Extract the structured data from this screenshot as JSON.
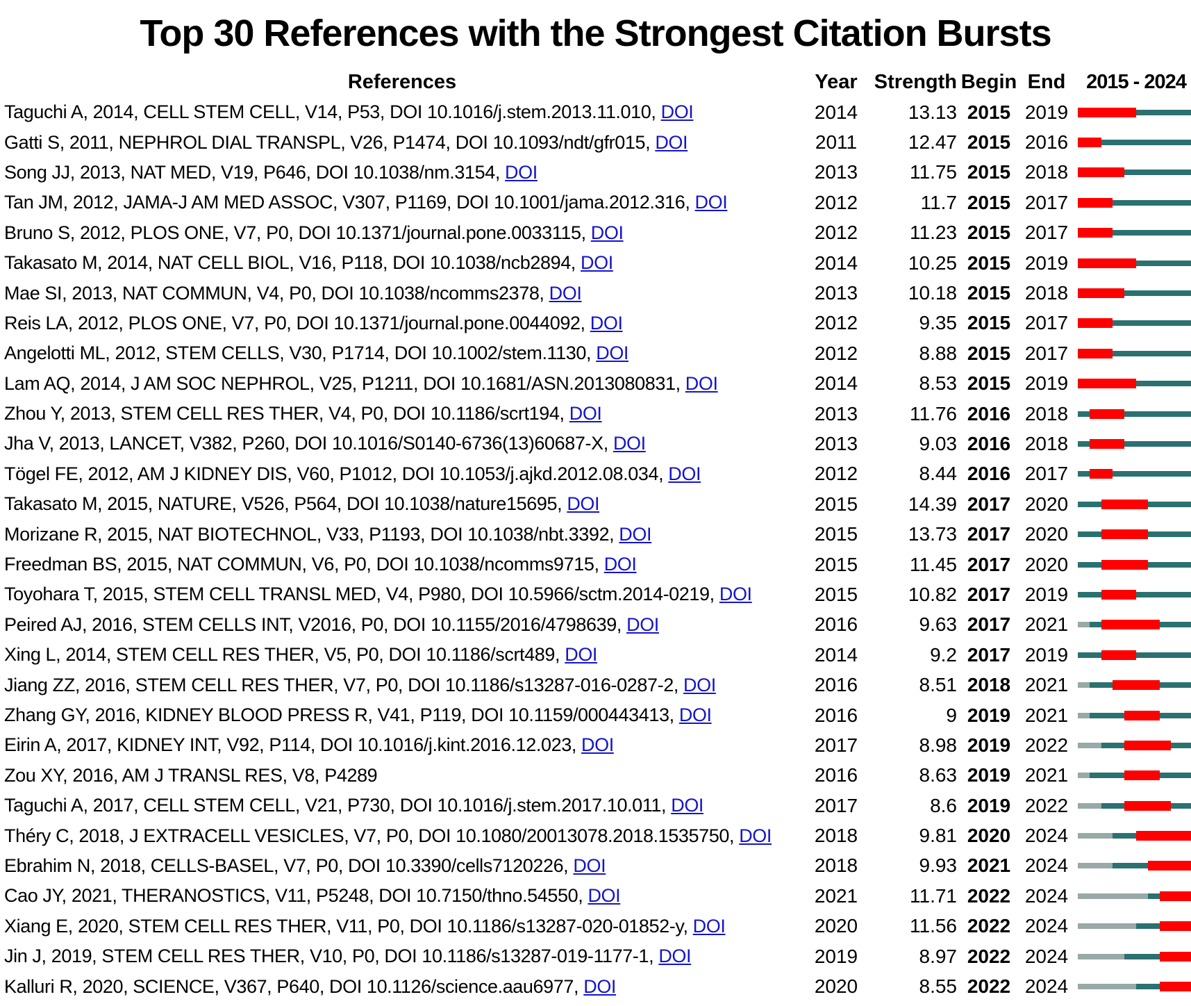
{
  "chart_data": {
    "type": "table",
    "title": "Top 30 References with the Strongest Citation Bursts",
    "headers": {
      "references": "References",
      "year": "Year",
      "strength": "Strength",
      "begin": "Begin",
      "end": "End",
      "range": "2015 - 2024"
    },
    "doi_label": "DOI",
    "timeline": {
      "start": 2015,
      "end": 2024
    },
    "colors": {
      "burst": "#fe0000",
      "active": "#2a7170",
      "pre": "#98a9a7",
      "link": "#1414cc"
    },
    "rows": [
      {
        "text": "Taguchi A, 2014, CELL STEM CELL, V14, P53, DOI 10.1016/j.stem.2013.11.010,",
        "doi": true,
        "year": 2014,
        "strength": "13.13",
        "begin": 2015,
        "end": 2019
      },
      {
        "text": "Gatti S, 2011, NEPHROL DIAL TRANSPL, V26, P1474, DOI 10.1093/ndt/gfr015,",
        "doi": true,
        "year": 2011,
        "strength": "12.47",
        "begin": 2015,
        "end": 2016
      },
      {
        "text": "Song JJ, 2013, NAT MED, V19, P646, DOI 10.1038/nm.3154,",
        "doi": true,
        "year": 2013,
        "strength": "11.75",
        "begin": 2015,
        "end": 2018
      },
      {
        "text": "Tan JM, 2012, JAMA-J AM MED ASSOC, V307, P1169, DOI 10.1001/jama.2012.316,",
        "doi": true,
        "year": 2012,
        "strength": "11.7",
        "begin": 2015,
        "end": 2017
      },
      {
        "text": "Bruno S, 2012, PLOS ONE, V7, P0, DOI 10.1371/journal.pone.0033115,",
        "doi": true,
        "year": 2012,
        "strength": "11.23",
        "begin": 2015,
        "end": 2017
      },
      {
        "text": "Takasato M, 2014, NAT CELL BIOL, V16, P118, DOI 10.1038/ncb2894,",
        "doi": true,
        "year": 2014,
        "strength": "10.25",
        "begin": 2015,
        "end": 2019
      },
      {
        "text": "Mae SI, 2013, NAT COMMUN, V4, P0, DOI 10.1038/ncomms2378,",
        "doi": true,
        "year": 2013,
        "strength": "10.18",
        "begin": 2015,
        "end": 2018
      },
      {
        "text": "Reis LA, 2012, PLOS ONE, V7, P0, DOI 10.1371/journal.pone.0044092,",
        "doi": true,
        "year": 2012,
        "strength": "9.35",
        "begin": 2015,
        "end": 2017
      },
      {
        "text": "Angelotti ML, 2012, STEM CELLS, V30, P1714, DOI 10.1002/stem.1130,",
        "doi": true,
        "year": 2012,
        "strength": "8.88",
        "begin": 2015,
        "end": 2017
      },
      {
        "text": "Lam AQ, 2014, J AM SOC NEPHROL, V25, P1211, DOI 10.1681/ASN.2013080831,",
        "doi": true,
        "year": 2014,
        "strength": "8.53",
        "begin": 2015,
        "end": 2019
      },
      {
        "text": "Zhou Y, 2013, STEM CELL RES THER, V4, P0, DOI 10.1186/scrt194,",
        "doi": true,
        "year": 2013,
        "strength": "11.76",
        "begin": 2016,
        "end": 2018
      },
      {
        "text": "Jha V, 2013, LANCET, V382, P260, DOI 10.1016/S0140-6736(13)60687-X,",
        "doi": true,
        "year": 2013,
        "strength": "9.03",
        "begin": 2016,
        "end": 2018
      },
      {
        "text": "Tögel FE, 2012, AM J KIDNEY DIS, V60, P1012, DOI 10.1053/j.ajkd.2012.08.034,",
        "doi": true,
        "year": 2012,
        "strength": "8.44",
        "begin": 2016,
        "end": 2017
      },
      {
        "text": "Takasato M, 2015, NATURE, V526, P564, DOI 10.1038/nature15695,",
        "doi": true,
        "year": 2015,
        "strength": "14.39",
        "begin": 2017,
        "end": 2020
      },
      {
        "text": "Morizane R, 2015, NAT BIOTECHNOL, V33, P1193, DOI 10.1038/nbt.3392,",
        "doi": true,
        "year": 2015,
        "strength": "13.73",
        "begin": 2017,
        "end": 2020
      },
      {
        "text": "Freedman BS, 2015, NAT COMMUN, V6, P0, DOI 10.1038/ncomms9715,",
        "doi": true,
        "year": 2015,
        "strength": "11.45",
        "begin": 2017,
        "end": 2020
      },
      {
        "text": "Toyohara T, 2015, STEM CELL TRANSL MED, V4, P980, DOI 10.5966/sctm.2014-0219,",
        "doi": true,
        "year": 2015,
        "strength": "10.82",
        "begin": 2017,
        "end": 2019
      },
      {
        "text": "Peired AJ, 2016, STEM CELLS INT, V2016, P0, DOI 10.1155/2016/4798639,",
        "doi": true,
        "year": 2016,
        "strength": "9.63",
        "begin": 2017,
        "end": 2021
      },
      {
        "text": "Xing L, 2014, STEM CELL RES THER, V5, P0, DOI 10.1186/scrt489,",
        "doi": true,
        "year": 2014,
        "strength": "9.2",
        "begin": 2017,
        "end": 2019
      },
      {
        "text": "Jiang ZZ, 2016, STEM CELL RES THER, V7, P0, DOI 10.1186/s13287-016-0287-2,",
        "doi": true,
        "year": 2016,
        "strength": "8.51",
        "begin": 2018,
        "end": 2021
      },
      {
        "text": "Zhang GY, 2016, KIDNEY BLOOD PRESS R, V41, P119, DOI 10.1159/000443413,",
        "doi": true,
        "year": 2016,
        "strength": "9",
        "begin": 2019,
        "end": 2021
      },
      {
        "text": "Eirin A, 2017, KIDNEY INT, V92, P114, DOI 10.1016/j.kint.2016.12.023,",
        "doi": true,
        "year": 2017,
        "strength": "8.98",
        "begin": 2019,
        "end": 2022
      },
      {
        "text": "Zou XY, 2016, AM J TRANSL RES, V8, P4289",
        "doi": false,
        "year": 2016,
        "strength": "8.63",
        "begin": 2019,
        "end": 2021
      },
      {
        "text": "Taguchi A, 2017, CELL STEM CELL, V21, P730, DOI 10.1016/j.stem.2017.10.011,",
        "doi": true,
        "year": 2017,
        "strength": "8.6",
        "begin": 2019,
        "end": 2022
      },
      {
        "text": "Théry C, 2018, J EXTRACELL VESICLES, V7, P0, DOI 10.1080/20013078.2018.1535750,",
        "doi": true,
        "year": 2018,
        "strength": "9.81",
        "begin": 2020,
        "end": 2024
      },
      {
        "text": "Ebrahim N, 2018, CELLS-BASEL, V7, P0, DOI 10.3390/cells7120226,",
        "doi": true,
        "year": 2018,
        "strength": "9.93",
        "begin": 2021,
        "end": 2024
      },
      {
        "text": "Cao JY, 2021, THERANOSTICS, V11, P5248, DOI 10.7150/thno.54550,",
        "doi": true,
        "year": 2021,
        "strength": "11.71",
        "begin": 2022,
        "end": 2024
      },
      {
        "text": "Xiang E, 2020, STEM CELL RES THER, V11, P0, DOI 10.1186/s13287-020-01852-y,",
        "doi": true,
        "year": 2020,
        "strength": "11.56",
        "begin": 2022,
        "end": 2024
      },
      {
        "text": "Jin J, 2019, STEM CELL RES THER, V10, P0, DOI 10.1186/s13287-019-1177-1,",
        "doi": true,
        "year": 2019,
        "strength": "8.97",
        "begin": 2022,
        "end": 2024
      },
      {
        "text": "Kalluri R, 2020, SCIENCE, V367, P640, DOI 10.1126/science.aau6977,",
        "doi": true,
        "year": 2020,
        "strength": "8.55",
        "begin": 2022,
        "end": 2024
      }
    ]
  }
}
